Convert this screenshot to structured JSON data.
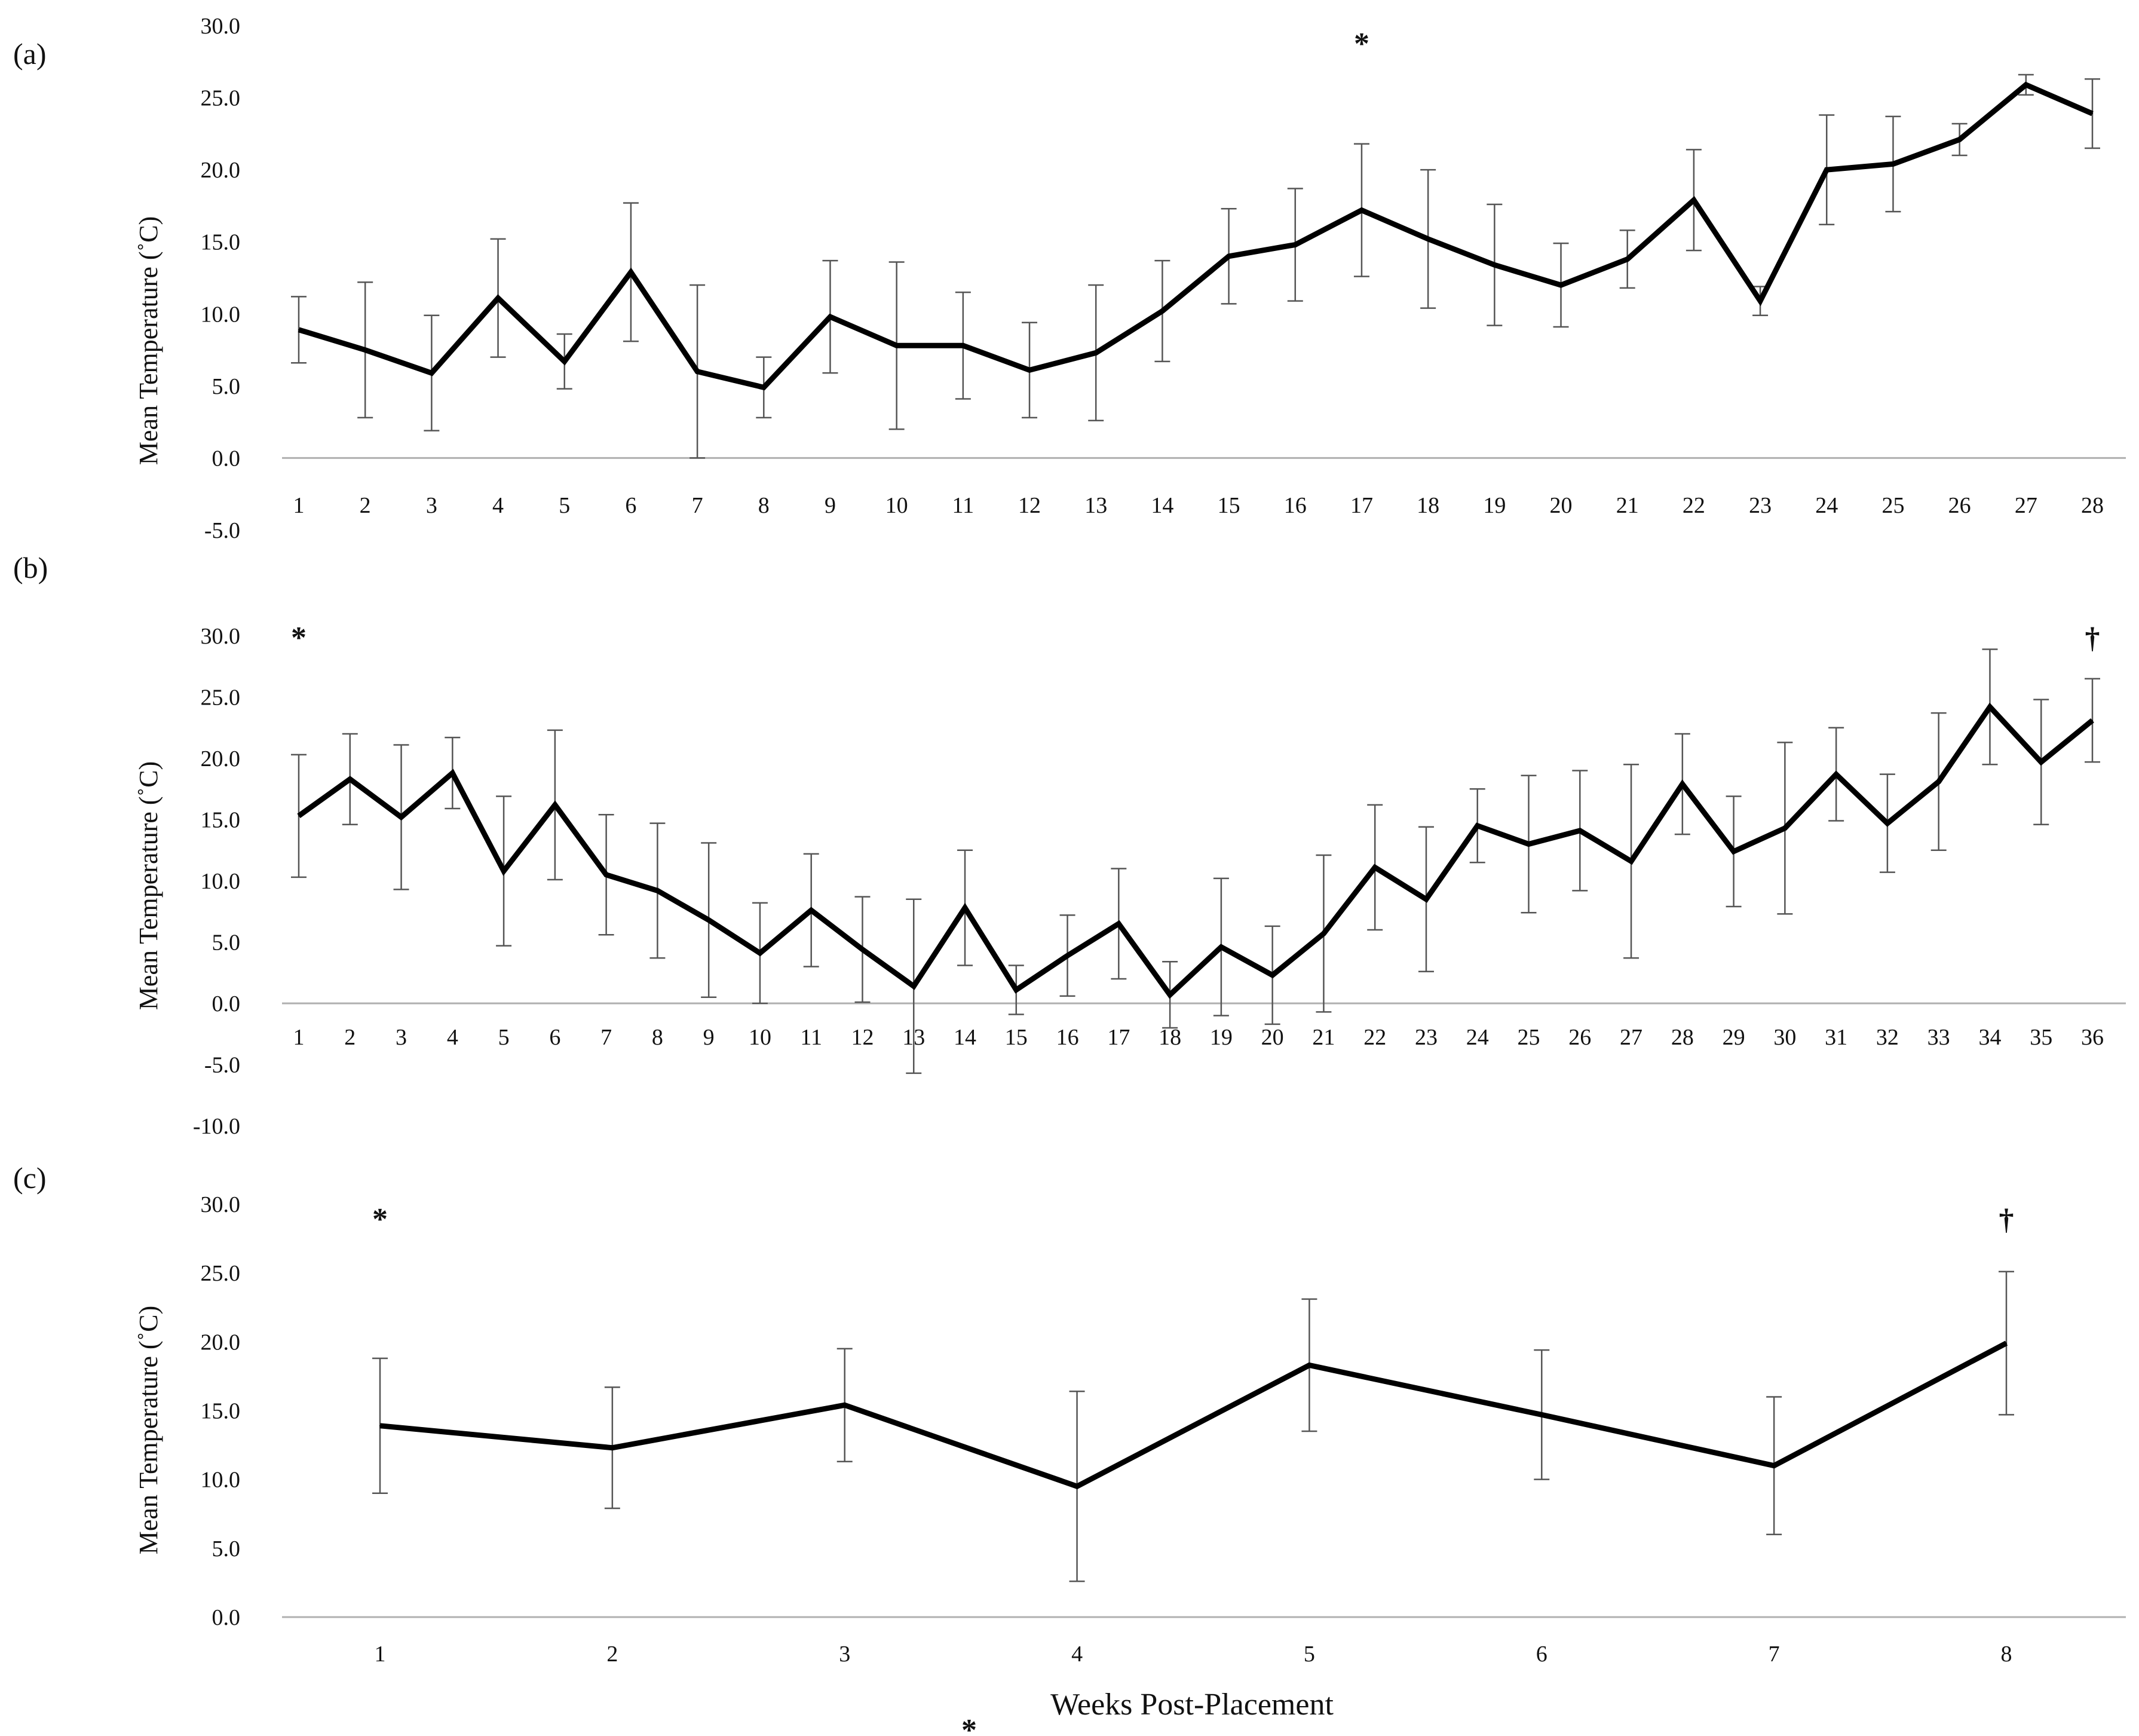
{
  "figure": {
    "xlabel": "Weeks Post-Placement",
    "footnote_mark": "*"
  },
  "chart_data": [
    {
      "panel": "(a)",
      "type": "line",
      "ylabel": "Mean Temperature (˚C)",
      "ylim": [
        -5,
        30
      ],
      "yticks": [
        "-5.0",
        "0.0",
        "5.0",
        "10.0",
        "15.0",
        "20.0",
        "25.0",
        "30.0"
      ],
      "categories": [
        "1",
        "2",
        "3",
        "4",
        "5",
        "6",
        "7",
        "8",
        "9",
        "10",
        "11",
        "12",
        "13",
        "14",
        "15",
        "16",
        "17",
        "18",
        "19",
        "20",
        "21",
        "22",
        "23",
        "24",
        "25",
        "26",
        "27",
        "28"
      ],
      "series": [
        {
          "name": "Mean Temperature",
          "values": [
            8.9,
            7.5,
            5.9,
            11.1,
            6.7,
            12.9,
            6.0,
            4.9,
            9.8,
            7.8,
            7.8,
            6.1,
            7.3,
            10.2,
            14.0,
            14.8,
            17.2,
            15.2,
            13.4,
            12.0,
            13.8,
            17.9,
            10.9,
            20.0,
            20.4,
            22.1,
            25.9,
            23.9
          ]
        }
      ],
      "error_bars": [
        2.3,
        4.7,
        4.0,
        4.1,
        1.9,
        4.8,
        6.0,
        2.1,
        3.9,
        5.8,
        3.7,
        3.3,
        4.7,
        3.5,
        3.3,
        3.9,
        4.6,
        4.8,
        4.2,
        2.9,
        2.0,
        3.5,
        1.0,
        3.8,
        3.3,
        1.1,
        0.7,
        2.4
      ],
      "annotations": [
        {
          "category": "17",
          "text": "*"
        }
      ]
    },
    {
      "panel": "(b)",
      "type": "line",
      "ylabel": "Mean Temperature (˚C)",
      "ylim": [
        -10,
        30
      ],
      "yticks": [
        "-10.0",
        "-5.0",
        "0.0",
        "5.0",
        "10.0",
        "15.0",
        "20.0",
        "25.0",
        "30.0"
      ],
      "categories": [
        "1",
        "2",
        "3",
        "4",
        "5",
        "6",
        "7",
        "8",
        "9",
        "10",
        "11",
        "12",
        "13",
        "14",
        "15",
        "16",
        "17",
        "18",
        "19",
        "20",
        "21",
        "22",
        "23",
        "24",
        "25",
        "26",
        "27",
        "28",
        "29",
        "30",
        "31",
        "32",
        "33",
        "34",
        "35",
        "36"
      ],
      "series": [
        {
          "name": "Mean Temperature",
          "values": [
            15.3,
            18.3,
            15.2,
            18.8,
            10.8,
            16.2,
            10.5,
            9.2,
            6.8,
            4.1,
            7.6,
            4.4,
            1.4,
            7.8,
            1.1,
            3.9,
            6.5,
            0.7,
            4.6,
            2.3,
            5.7,
            11.1,
            8.5,
            14.5,
            13.0,
            14.1,
            11.6,
            17.9,
            12.4,
            14.3,
            18.7,
            14.7,
            18.1,
            24.2,
            19.7,
            23.1
          ]
        }
      ],
      "error_bars": [
        5.0,
        3.7,
        5.9,
        2.9,
        6.1,
        6.1,
        4.9,
        5.5,
        6.3,
        4.1,
        4.6,
        4.3,
        7.1,
        4.7,
        2.0,
        3.3,
        4.5,
        2.7,
        5.6,
        4.0,
        6.4,
        5.1,
        5.9,
        3.0,
        5.6,
        4.9,
        7.9,
        4.1,
        4.5,
        7.0,
        3.8,
        4.0,
        5.6,
        4.7,
        5.1,
        3.4
      ],
      "annotations": [
        {
          "category": "1",
          "text": "*"
        },
        {
          "category": "36",
          "text": "†"
        }
      ]
    },
    {
      "panel": "(c)",
      "type": "line",
      "ylabel": "Mean Temperature (˚C)",
      "ylim": [
        0,
        30
      ],
      "yticks": [
        "0.0",
        "5.0",
        "10.0",
        "15.0",
        "20.0",
        "25.0",
        "30.0"
      ],
      "categories": [
        "1",
        "2",
        "3",
        "4",
        "5",
        "6",
        "7",
        "8"
      ],
      "series": [
        {
          "name": "Mean Temperature",
          "values": [
            13.9,
            12.3,
            15.4,
            9.5,
            18.3,
            14.7,
            11.0,
            19.9
          ]
        }
      ],
      "error_bars": [
        4.9,
        4.4,
        4.1,
        6.9,
        4.8,
        4.7,
        5.0,
        5.2
      ],
      "annotations": [
        {
          "category": "1",
          "text": "*"
        },
        {
          "category": "8",
          "text": "†"
        }
      ]
    }
  ]
}
